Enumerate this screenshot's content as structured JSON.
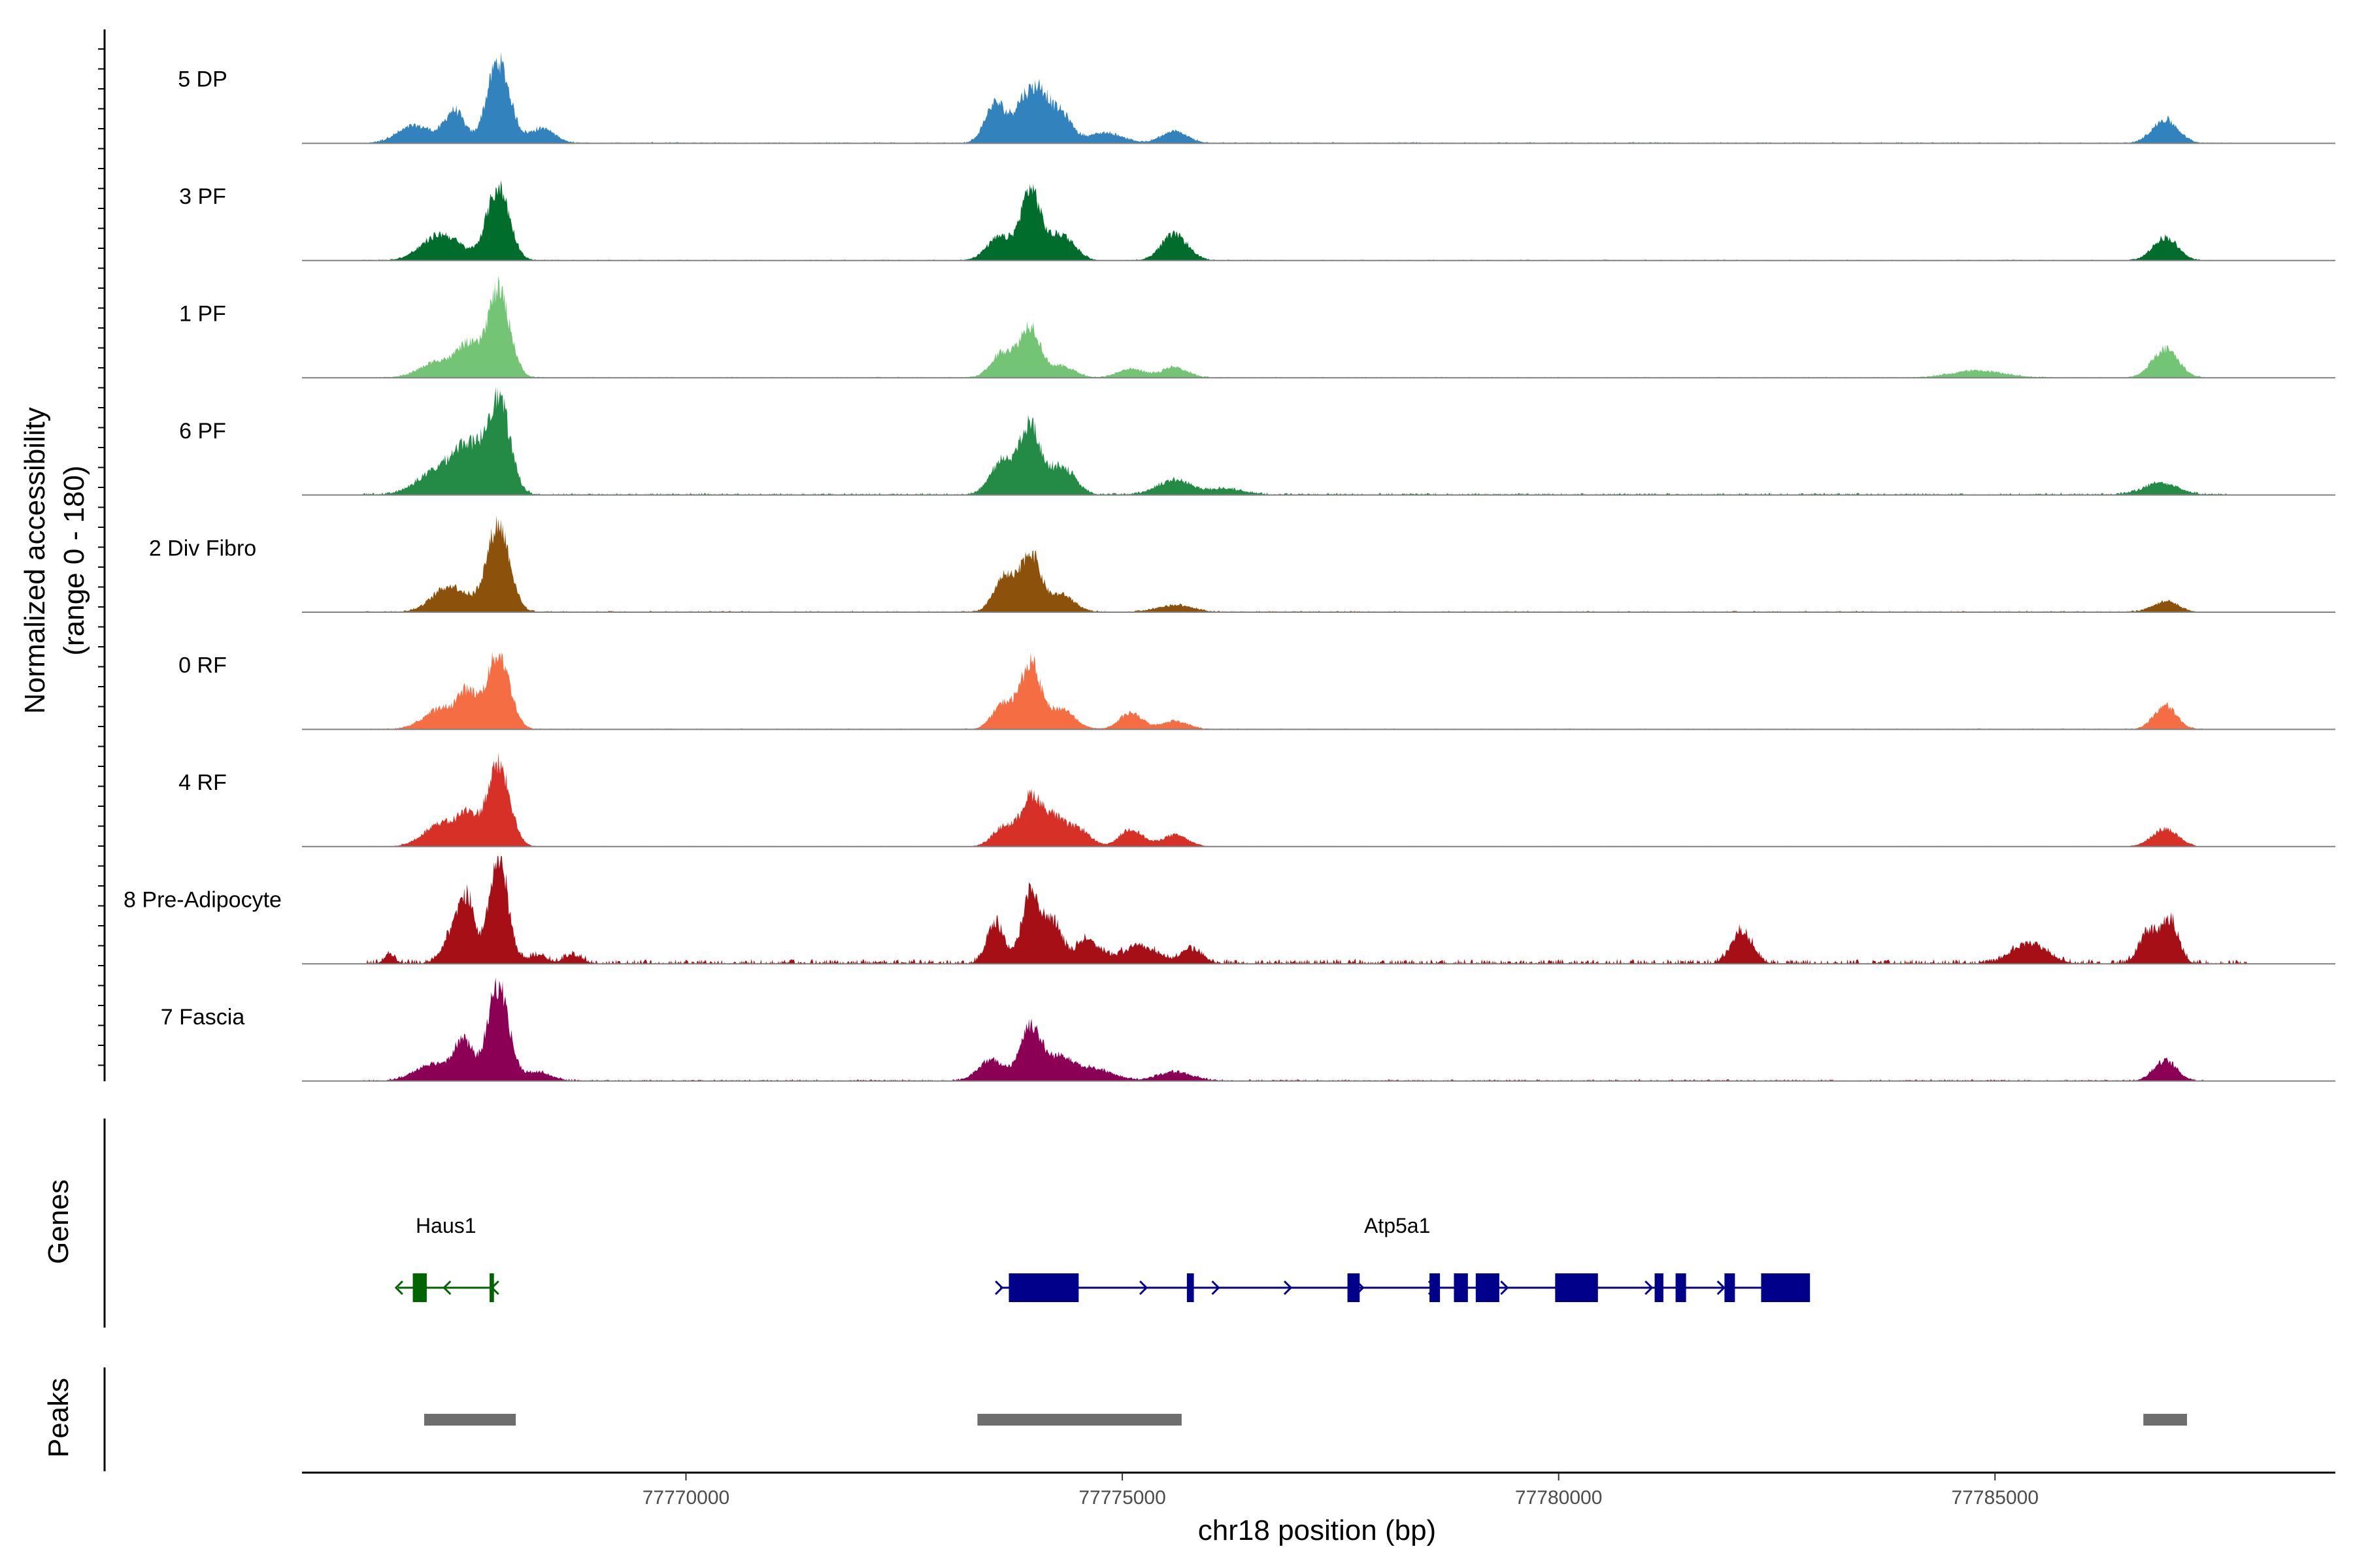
{
  "chart_data": {
    "type": "area",
    "title": "",
    "xlabel": "chr18 position (bp)",
    "ylabel": "Normalized accessibility",
    "ylabel_range": "(range 0 - 180)",
    "ylim": [
      0,
      180
    ],
    "xlim": [
      77765600,
      77788900
    ],
    "x_ticks": [
      77770000,
      77775000,
      77780000,
      77785000
    ],
    "x_tick_labels": [
      "77770000",
      "77775000",
      "77780000",
      "77785000"
    ],
    "tracks": [
      {
        "name": "5 DP",
        "color": "#3182bd",
        "peaks": [
          [
            77766900,
            30,
            200
          ],
          [
            77767350,
            55,
            110
          ],
          [
            77767850,
            140,
            130
          ],
          [
            77768350,
            25,
            150
          ],
          [
            77773550,
            70,
            120
          ],
          [
            77773850,
            60,
            100
          ],
          [
            77774050,
            85,
            110
          ],
          [
            77774300,
            50,
            120
          ],
          [
            77774800,
            18,
            200
          ],
          [
            77775600,
            20,
            150
          ],
          [
            77786950,
            40,
            150
          ]
        ],
        "noise": 4,
        "extent": [
          77766300,
          77787700
        ]
      },
      {
        "name": "3 PF",
        "color": "#006d2c",
        "peaks": [
          [
            77767200,
            45,
            220
          ],
          [
            77767850,
            125,
            130
          ],
          [
            77773600,
            40,
            150
          ],
          [
            77773950,
            120,
            110
          ],
          [
            77774300,
            45,
            150
          ],
          [
            77775600,
            45,
            150
          ],
          [
            77786950,
            40,
            140
          ]
        ],
        "noise": 3,
        "extent": [
          77766300,
          77787500
        ]
      },
      {
        "name": "1 PF",
        "color": "#74c476",
        "peaks": [
          [
            77767200,
            30,
            220
          ],
          [
            77767500,
            45,
            110
          ],
          [
            77767850,
            150,
            130
          ],
          [
            77773650,
            45,
            140
          ],
          [
            77773950,
            85,
            110
          ],
          [
            77774300,
            20,
            150
          ],
          [
            77775100,
            15,
            150
          ],
          [
            77775600,
            18,
            150
          ],
          [
            77784800,
            12,
            300
          ],
          [
            77786950,
            50,
            150
          ]
        ],
        "noise": 3,
        "extent": [
          77766300,
          77787400
        ]
      },
      {
        "name": "6 PF",
        "color": "#238b45",
        "peaks": [
          [
            77767200,
            45,
            250
          ],
          [
            77767500,
            65,
            150
          ],
          [
            77767850,
            165,
            130
          ],
          [
            77773650,
            60,
            150
          ],
          [
            77773950,
            110,
            110
          ],
          [
            77774300,
            50,
            150
          ],
          [
            77775600,
            25,
            200
          ],
          [
            77776200,
            10,
            200
          ],
          [
            77786900,
            20,
            200
          ]
        ],
        "noise": 6,
        "extent": [
          77766300,
          77787700
        ]
      },
      {
        "name": "2 Div Fibro",
        "color": "#8c510a",
        "peaks": [
          [
            77767300,
            45,
            200
          ],
          [
            77767850,
            150,
            130
          ],
          [
            77773650,
            60,
            120
          ],
          [
            77773950,
            100,
            110
          ],
          [
            77774300,
            30,
            150
          ],
          [
            77775600,
            12,
            200
          ],
          [
            77786950,
            18,
            150
          ]
        ],
        "noise": 4,
        "extent": [
          77766300,
          77787300
        ]
      },
      {
        "name": "0 RF",
        "color": "#f46d43",
        "peaks": [
          [
            77767200,
            35,
            200
          ],
          [
            77767500,
            55,
            110
          ],
          [
            77767850,
            130,
            130
          ],
          [
            77773650,
            45,
            130
          ],
          [
            77773950,
            110,
            110
          ],
          [
            77774300,
            35,
            150
          ],
          [
            77775100,
            28,
            130
          ],
          [
            77775600,
            15,
            150
          ],
          [
            77786950,
            40,
            130
          ]
        ],
        "noise": 3,
        "extent": [
          77766300,
          77787400
        ]
      },
      {
        "name": "4 RF",
        "color": "#d73027",
        "peaks": [
          [
            77767200,
            40,
            200
          ],
          [
            77767500,
            45,
            110
          ],
          [
            77767850,
            140,
            130
          ],
          [
            77773650,
            35,
            130
          ],
          [
            77773950,
            80,
            110
          ],
          [
            77774200,
            50,
            130
          ],
          [
            77774500,
            30,
            130
          ],
          [
            77775100,
            30,
            130
          ],
          [
            77775600,
            20,
            150
          ],
          [
            77786950,
            30,
            150
          ]
        ],
        "noise": 2,
        "extent": [
          77766300,
          77787300
        ]
      },
      {
        "name": "8 Pre-Adipocyte",
        "color": "#a50f15",
        "peaks": [
          [
            77766600,
            15,
            60
          ],
          [
            77767350,
            60,
            120
          ],
          [
            77767500,
            90,
            80
          ],
          [
            77767850,
            180,
            110
          ],
          [
            77768300,
            15,
            100
          ],
          [
            77768700,
            15,
            100
          ],
          [
            77773550,
            70,
            100
          ],
          [
            77773950,
            120,
            100
          ],
          [
            77774200,
            70,
            100
          ],
          [
            77774600,
            40,
            150
          ],
          [
            77775200,
            30,
            200
          ],
          [
            77775800,
            25,
            120
          ],
          [
            77782100,
            55,
            120
          ],
          [
            77785400,
            35,
            200
          ],
          [
            77786750,
            55,
            100
          ],
          [
            77787000,
            75,
            100
          ]
        ],
        "noise": 14,
        "extent": [
          77766300,
          77787900
        ]
      },
      {
        "name": "7 Fascia",
        "color": "#8b0055",
        "peaks": [
          [
            77767100,
            30,
            200
          ],
          [
            77767450,
            65,
            110
          ],
          [
            77767850,
            165,
            120
          ],
          [
            77768300,
            15,
            150
          ],
          [
            77773500,
            35,
            150
          ],
          [
            77773950,
            95,
            120
          ],
          [
            77774300,
            40,
            150
          ],
          [
            77774700,
            20,
            200
          ],
          [
            77775600,
            15,
            200
          ],
          [
            77786950,
            35,
            130
          ]
        ],
        "noise": 5,
        "extent": [
          77766300,
          77787400
        ]
      }
    ],
    "genes": [
      {
        "name": "Haus1",
        "strand": "-",
        "color": "#006400",
        "start": 77766700,
        "end": 77767800,
        "exons": [
          [
            77766870,
            77767030
          ],
          [
            77767750,
            77767800
          ]
        ]
      },
      {
        "name": "Atp5a1",
        "strand": "+",
        "color": "#00008b",
        "start": 77773600,
        "end": 77782700,
        "exons": [
          [
            77773700,
            77774500
          ],
          [
            77775740,
            77775820
          ],
          [
            77777580,
            77777720
          ],
          [
            77778520,
            77778640
          ],
          [
            77778800,
            77778960
          ],
          [
            77779050,
            77779320
          ],
          [
            77779960,
            77780450
          ],
          [
            77781100,
            77781200
          ],
          [
            77781340,
            77781460
          ],
          [
            77781900,
            77782020
          ],
          [
            77782320,
            77782880
          ]
        ]
      }
    ],
    "peaks": [
      [
        77767000,
        77768050
      ],
      [
        77773340,
        77775680
      ],
      [
        77786700,
        77787200
      ]
    ],
    "panel_labels": {
      "genes": "Genes",
      "peaks": "Peaks"
    }
  }
}
